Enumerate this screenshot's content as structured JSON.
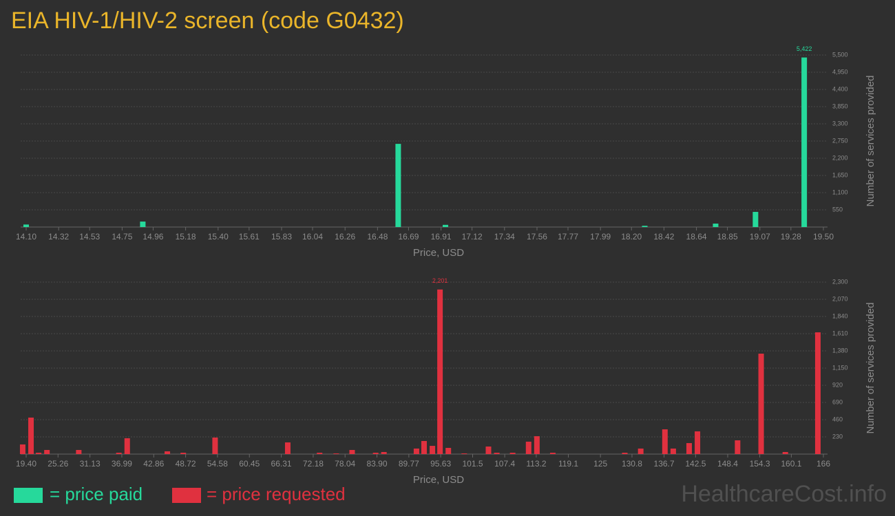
{
  "title": "EIA HIV-1/HIV-2 screen (code G0432)",
  "legend": [
    {
      "label": "= price paid",
      "color": "#26d99b"
    },
    {
      "label": "= price requested",
      "color": "#e0313f"
    }
  ],
  "watermark": "HealthcareCost.info",
  "chart_data": [
    {
      "type": "bar",
      "xlabel": "Price, USD",
      "ylabel": "Number of services provided",
      "color": "#26d99b",
      "grid": true,
      "x": [
        14.1,
        14.89,
        16.62,
        16.94,
        18.29,
        18.77,
        19.04,
        19.37
      ],
      "values": [
        80,
        175,
        2660,
        70,
        40,
        110,
        485,
        5422
      ],
      "value_labels": [
        null,
        null,
        null,
        null,
        null,
        null,
        null,
        "5,422"
      ],
      "xlim": [
        14.1,
        19.5
      ],
      "xticks": [
        {
          "value": 14.1,
          "label": "14.10"
        },
        14.32,
        14.53,
        14.75,
        14.96,
        15.18,
        {
          "value": 15.4,
          "label": "15.40"
        },
        15.61,
        15.83,
        16.04,
        16.26,
        16.48,
        16.69,
        16.91,
        17.12,
        17.34,
        17.56,
        17.77,
        17.99,
        {
          "value": 18.2,
          "label": "18.20"
        },
        18.42,
        18.64,
        18.85,
        19.07,
        19.28,
        {
          "value": 19.5,
          "label": "19.50"
        }
      ],
      "ylim": [
        0,
        5500
      ],
      "yticks": [
        550,
        {
          "value": 1100,
          "label": "1,100"
        },
        {
          "value": 1650,
          "label": "1,650"
        },
        {
          "value": 2200,
          "label": "2,200"
        },
        {
          "value": 2750,
          "label": "2,750"
        },
        {
          "value": 3300,
          "label": "3,300"
        },
        {
          "value": 3850,
          "label": "3,850"
        },
        {
          "value": 4400,
          "label": "4,400"
        },
        {
          "value": 4950,
          "label": "4,950"
        },
        {
          "value": 5500,
          "label": "5,500"
        }
      ]
    },
    {
      "type": "bar",
      "xlabel": "Price, USD",
      "ylabel": "Number of services provided",
      "color": "#e0313f",
      "grid": true,
      "x": [
        18.76,
        20.29,
        21.69,
        23.22,
        29.07,
        36.45,
        37.98,
        45.36,
        48.29,
        54.14,
        67.5,
        73.36,
        76.41,
        79.34,
        83.67,
        85.19,
        91.17,
        92.57,
        94.1,
        95.5,
        97.03,
        99.95,
        104.41,
        105.94,
        108.86,
        111.79,
        113.32,
        116.24,
        129.48,
        132.41,
        136.86,
        138.39,
        141.31,
        142.84,
        150.22,
        154.55,
        159.0,
        164.98
      ],
      "values": [
        129,
        488,
        18,
        55,
        55,
        18,
        212,
        37,
        18,
        221,
        156,
        18,
        9,
        55,
        18,
        28,
        74,
        175,
        110,
        2201,
        83,
        9,
        101,
        18,
        18,
        166,
        239,
        18,
        18,
        74,
        331,
        74,
        147,
        304,
        184,
        1343,
        28,
        1628
      ],
      "value_labels": [
        null,
        null,
        null,
        null,
        null,
        null,
        null,
        null,
        null,
        null,
        null,
        null,
        null,
        null,
        null,
        null,
        null,
        null,
        null,
        "2,201",
        null,
        null,
        null,
        null,
        null,
        null,
        null,
        null,
        null,
        null,
        null,
        null,
        null,
        null,
        null,
        null,
        null,
        null
      ],
      "xlim": [
        19.4,
        166
      ],
      "xticks": [
        {
          "value": 19.4,
          "label": "19.40"
        },
        25.26,
        31.13,
        36.99,
        42.86,
        48.72,
        54.58,
        60.45,
        66.31,
        72.18,
        78.04,
        {
          "value": 83.9,
          "label": "83.90"
        },
        89.77,
        95.63,
        101.5,
        107.4,
        113.2,
        119.1,
        125,
        130.8,
        136.7,
        142.5,
        148.4,
        154.3,
        160.1,
        166
      ],
      "ylim": [
        0,
        2300
      ],
      "yticks": [
        230,
        460,
        690,
        920,
        {
          "value": 1150,
          "label": "1,150"
        },
        {
          "value": 1380,
          "label": "1,380"
        },
        {
          "value": 1610,
          "label": "1,610"
        },
        {
          "value": 1840,
          "label": "1,840"
        },
        {
          "value": 2070,
          "label": "2,070"
        },
        {
          "value": 2300,
          "label": "2,300"
        }
      ]
    }
  ]
}
